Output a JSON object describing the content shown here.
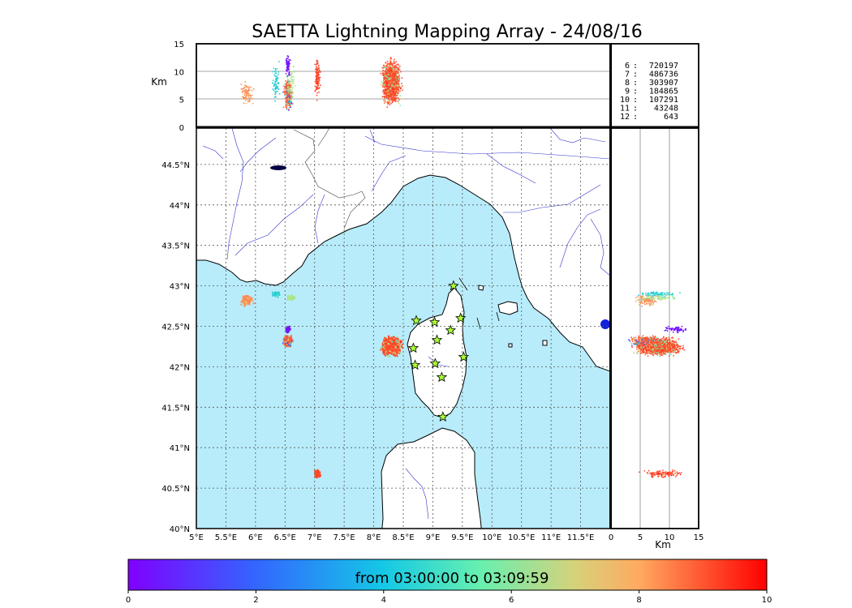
{
  "title": "SAETTA Lightning Mapping Array - 24/08/16",
  "colors": {
    "sea": "#b8ecfb",
    "land": "#ffffff",
    "river": "#3333cc",
    "station_fill": "#aaff33",
    "highlight_row": "#ff0000"
  },
  "map": {
    "lon_ticks": [
      "5°E",
      "5.5°E",
      "6°E",
      "6.5°E",
      "7°E",
      "7.5°E",
      "8°E",
      "8.5°E",
      "9°E",
      "9.5°E",
      "10°E",
      "10.5°E",
      "11°E",
      "11.5°E"
    ],
    "lat_ticks": [
      "40°N",
      "40.5°N",
      "41°N",
      "41.5°N",
      "42°N",
      "42.5°N",
      "43°N",
      "43.5°N",
      "44°N",
      "44.5°N"
    ],
    "lon_range": [
      5.0,
      12.0
    ],
    "lat_range": [
      40.0,
      44.95
    ],
    "grid": true,
    "stations_icon": "star-icon",
    "stations": [
      [
        9.35,
        43.0
      ],
      [
        8.72,
        42.57
      ],
      [
        9.03,
        42.55
      ],
      [
        9.47,
        42.6
      ],
      [
        9.3,
        42.45
      ],
      [
        9.07,
        42.33
      ],
      [
        8.67,
        42.23
      ],
      [
        8.7,
        42.02
      ],
      [
        9.04,
        42.04
      ],
      [
        9.52,
        42.12
      ],
      [
        9.15,
        41.87
      ],
      [
        9.17,
        41.38
      ]
    ]
  },
  "altitude_top": {
    "y_ticks": [
      "0",
      "5",
      "10",
      "15"
    ],
    "y_label": "Km",
    "y_range": [
      0,
      15
    ]
  },
  "altitude_right": {
    "x_ticks": [
      "0",
      "5",
      "10",
      "15"
    ],
    "x_label": "Km",
    "x_range": [
      0,
      15
    ]
  },
  "source_stats": [
    {
      "n": "6",
      "count": "720197"
    },
    {
      "n": "7",
      "count": "486736"
    },
    {
      "n": "8",
      "count": "303907"
    },
    {
      "n": "9",
      "count": "184865"
    },
    {
      "n": "10",
      "count": "107291"
    },
    {
      "n": "11",
      "count": "43248"
    },
    {
      "n": "12",
      "count": "643"
    }
  ],
  "highlighted_stat_index": 1,
  "colorbar": {
    "label": "from 03:00:00 to 03:09:59",
    "ticks": [
      "0",
      "2",
      "4",
      "6",
      "8",
      "10"
    ],
    "range": [
      0,
      10
    ],
    "colormap": "rainbow"
  }
}
